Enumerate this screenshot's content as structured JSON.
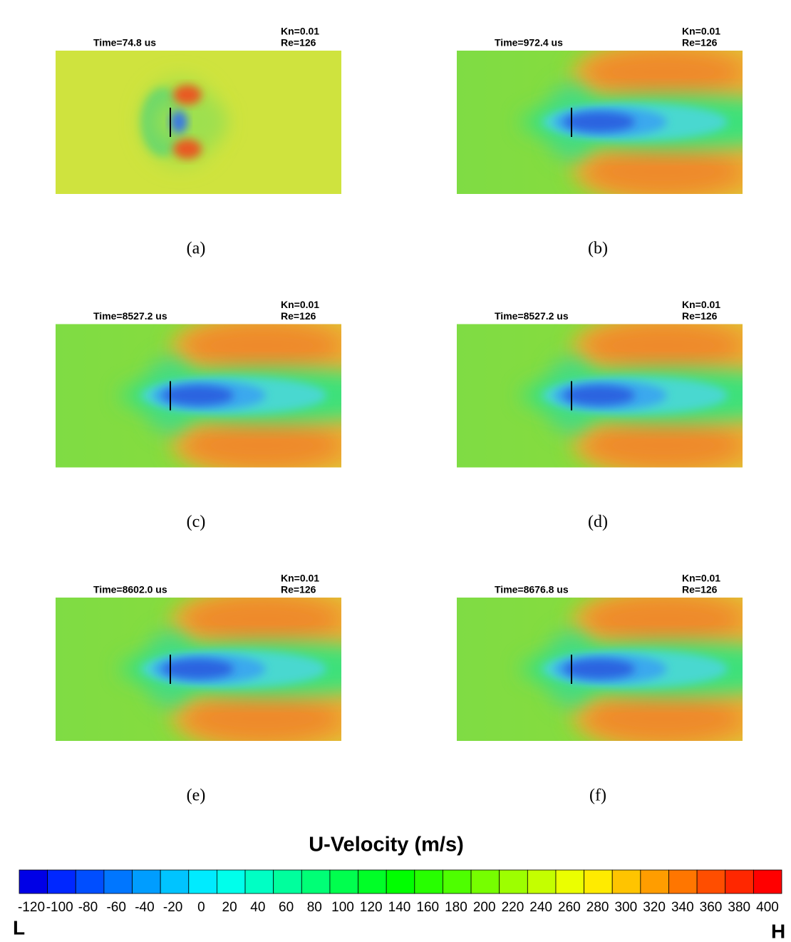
{
  "panels": [
    {
      "time": "Time=74.8 us",
      "kn": "Kn=0.01",
      "re": "Re=126",
      "caption": "(a)"
    },
    {
      "time": "Time=972.4 us",
      "kn": "Kn=0.01",
      "re": "Re=126",
      "caption": "(b)"
    },
    {
      "time": "Time=8527.2 us",
      "kn": "Kn=0.01",
      "re": "Re=126",
      "caption": "(c)"
    },
    {
      "time": "Time=8527.2 us",
      "kn": "Kn=0.01",
      "re": "Re=126",
      "caption": "(d)"
    },
    {
      "time": "Time=8602.0 us",
      "kn": "Kn=0.01",
      "re": "Re=126",
      "caption": "(e)"
    },
    {
      "time": "Time=8676.8 us",
      "kn": "Kn=0.01",
      "re": "Re=126",
      "caption": "(f)"
    }
  ],
  "colorbar": {
    "title": "U-Velocity (m/s)",
    "ticks": [
      "-120",
      "-100",
      "-80",
      "-60",
      "-40",
      "-20",
      "0",
      "20",
      "40",
      "60",
      "80",
      "100",
      "120",
      "140",
      "160",
      "180",
      "200",
      "220",
      "240",
      "260",
      "280",
      "300",
      "320",
      "340",
      "360",
      "380",
      "400"
    ],
    "low": "L",
    "high": "H"
  }
}
